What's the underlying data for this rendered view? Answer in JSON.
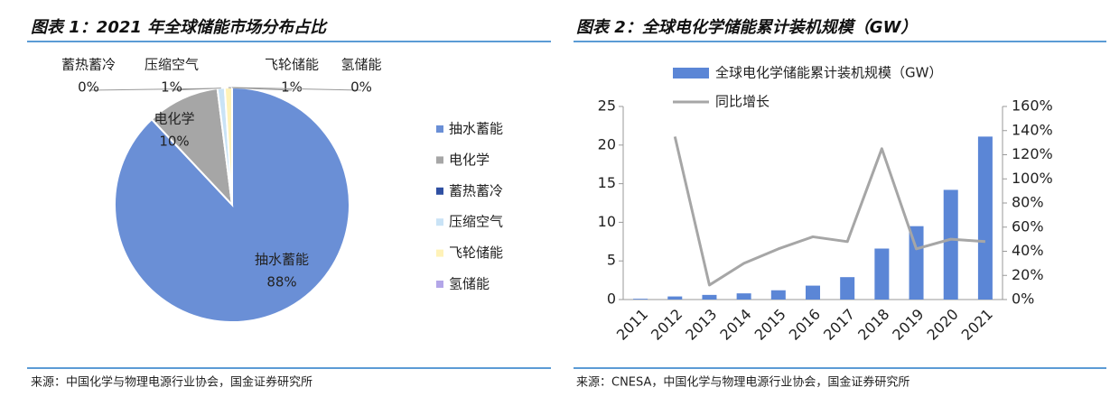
{
  "chart_data": [
    {
      "type": "pie",
      "title": "图表 1：2021 年全球储能市场分布占比",
      "categories": [
        "抽水蓄能",
        "电化学",
        "蓄热蓄冷",
        "压缩空气",
        "飞轮储能",
        "氢储能"
      ],
      "values": [
        88,
        10,
        0,
        1,
        1,
        0
      ],
      "value_labels": [
        "88%",
        "10%",
        "0%",
        "1%",
        "1%",
        "0%"
      ],
      "colors": [
        "#6a8fd6",
        "#a6a6a6",
        "#2f4fa2",
        "#c9e3f6",
        "#fff2b8",
        "#b3a6e8"
      ],
      "legend": "right",
      "source": "来源：中国化学与物理电源行业协会，国金证券研究所"
    },
    {
      "type": "bar-line",
      "title": "图表 2：全球电化学储能累计装机规模（GW）",
      "categories": [
        "2011",
        "2012",
        "2013",
        "2014",
        "2015",
        "2016",
        "2017",
        "2018",
        "2019",
        "2020",
        "2021"
      ],
      "series": [
        {
          "name": "全球电化学储能累计装机规模（GW）",
          "type": "bar",
          "color": "#5b86d6",
          "values": [
            0.1,
            0.4,
            0.6,
            0.8,
            1.2,
            1.8,
            2.9,
            6.6,
            9.5,
            14.2,
            21.1
          ]
        },
        {
          "name": "同比增长",
          "type": "line",
          "axis": "y2",
          "color": "#a6a6a6",
          "values": [
            null,
            135,
            12,
            30,
            42,
            52,
            48,
            125,
            42,
            50,
            48
          ]
        }
      ],
      "ylim": [
        0,
        25
      ],
      "yticks": [
        0,
        5,
        10,
        15,
        20,
        25
      ],
      "y2lim": [
        0,
        160
      ],
      "y2ticks": [
        {
          "value": 0,
          "label": "0%"
        },
        {
          "value": 20,
          "label": "20%"
        },
        {
          "value": 40,
          "label": "40%"
        },
        {
          "value": 60,
          "label": "60%"
        },
        {
          "value": 80,
          "label": "80%"
        },
        {
          "value": 100,
          "label": "100%"
        },
        {
          "value": 120,
          "label": "120%"
        },
        {
          "value": 140,
          "label": "140%"
        },
        {
          "value": 160,
          "label": "160%"
        }
      ],
      "legend": "top",
      "source": "来源：CNESA，中国化学与物理电源行业协会，国金证券研究所"
    }
  ]
}
